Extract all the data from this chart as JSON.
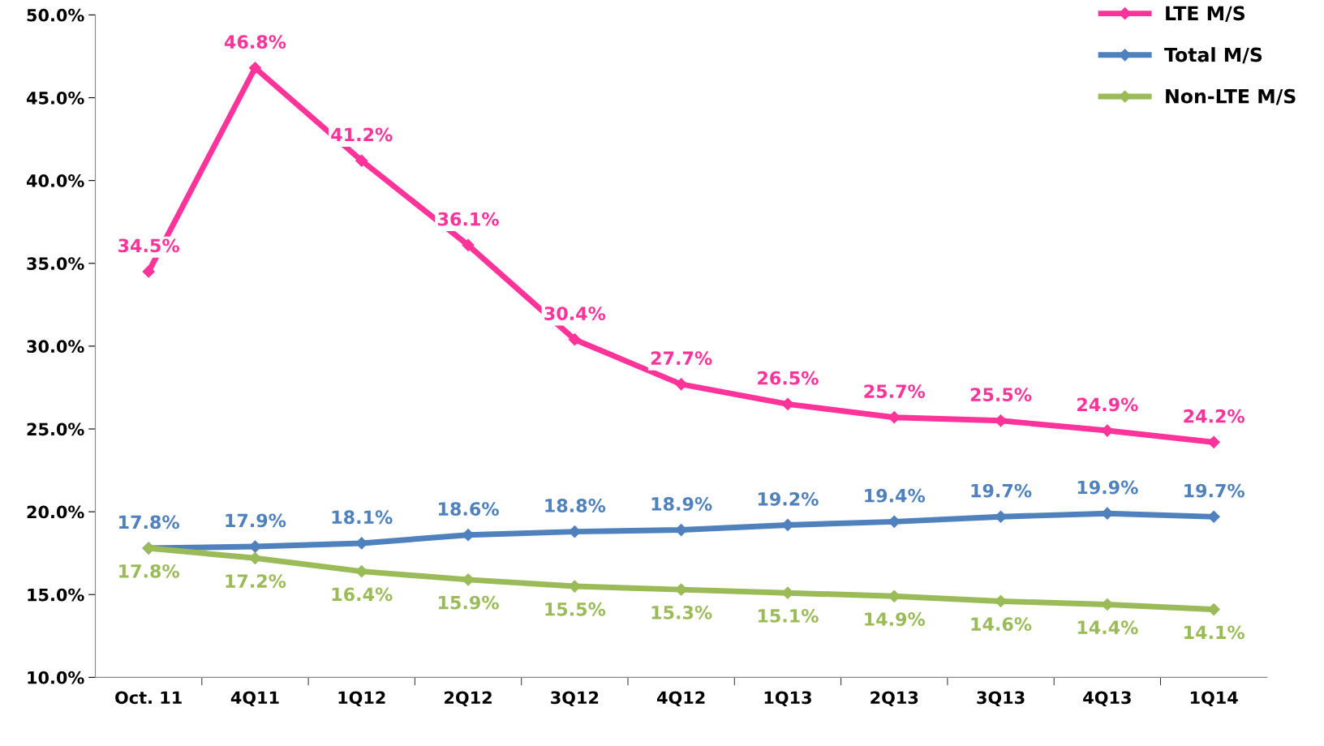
{
  "chart_data": {
    "type": "line",
    "categories": [
      "Oct. 11",
      "4Q11",
      "1Q12",
      "2Q12",
      "3Q12",
      "4Q12",
      "1Q13",
      "2Q13",
      "3Q13",
      "4Q13",
      "1Q14"
    ],
    "series": [
      {
        "name": "LTE M/S",
        "color": "#ff3399",
        "values": [
          34.5,
          46.8,
          41.2,
          36.1,
          30.4,
          27.7,
          26.5,
          25.7,
          25.5,
          24.9,
          24.2
        ],
        "value_labels": [
          "34.5%",
          "46.8%",
          "41.2%",
          "36.1%",
          "30.4%",
          "27.7%",
          "26.5%",
          "25.7%",
          "25.5%",
          "24.9%",
          "24.2%"
        ]
      },
      {
        "name": "Total M/S",
        "color": "#4f81bd",
        "values": [
          17.8,
          17.9,
          18.1,
          18.6,
          18.8,
          18.9,
          19.2,
          19.4,
          19.7,
          19.9,
          19.7
        ],
        "value_labels": [
          "17.8%",
          "17.9%",
          "18.1%",
          "18.6%",
          "18.8%",
          "18.9%",
          "19.2%",
          "19.4%",
          "19.7%",
          "19.9%",
          "19.7%"
        ]
      },
      {
        "name": "Non-LTE M/S",
        "color": "#9bbb59",
        "values": [
          17.8,
          17.2,
          16.4,
          15.9,
          15.5,
          15.3,
          15.1,
          14.9,
          14.6,
          14.4,
          14.1
        ],
        "value_labels": [
          "17.8%",
          "17.2%",
          "16.4%",
          "15.9%",
          "15.5%",
          "15.3%",
          "15.1%",
          "14.9%",
          "14.6%",
          "14.4%",
          "14.1%"
        ]
      }
    ],
    "ylim": [
      10,
      50
    ],
    "yticks": [
      {
        "value": 10,
        "label": "10.0%"
      },
      {
        "value": 15,
        "label": "15.0%"
      },
      {
        "value": 20,
        "label": "20.0%"
      },
      {
        "value": 25,
        "label": "25.0%"
      },
      {
        "value": 30,
        "label": "30.0%"
      },
      {
        "value": 35,
        "label": "35.0%"
      },
      {
        "value": 40,
        "label": "40.0%"
      },
      {
        "value": 45,
        "label": "45.0%"
      },
      {
        "value": 50,
        "label": "50.0%"
      }
    ],
    "grid": false,
    "legend": "top right",
    "marker": "diamond",
    "line_style": "solid"
  }
}
